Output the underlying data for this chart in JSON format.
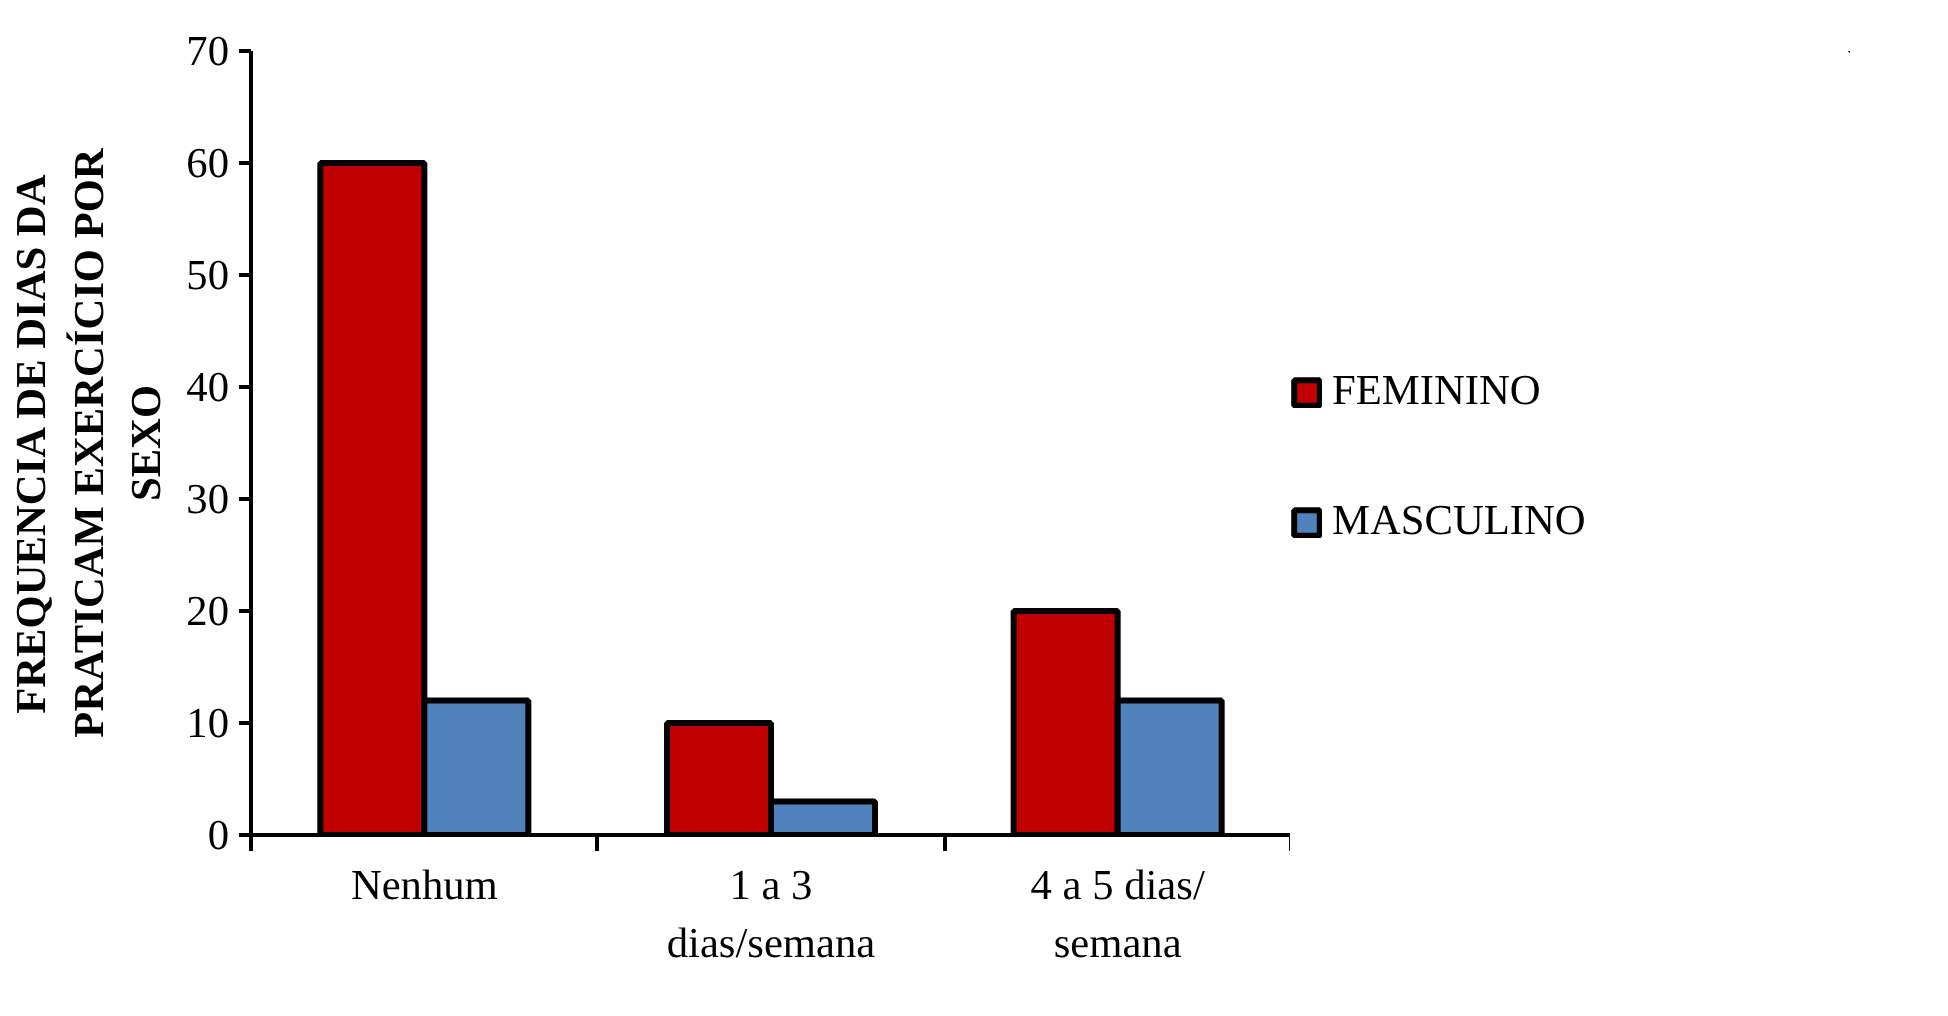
{
  "chart_data": {
    "type": "bar",
    "ylabel": "FREQUENCIA DE DIAS DA PRATICAM EXERCÍCIO POR SEXO",
    "categories": [
      "Nenhum",
      "1 a 3 dias/semana",
      "4 a 5 dias/ semana"
    ],
    "series": [
      {
        "name": "FEMININO",
        "color": "#c00000",
        "values": [
          60,
          10,
          20
        ]
      },
      {
        "name": "MASCULINO",
        "color": "#4f81bd",
        "values": [
          12,
          3,
          12
        ]
      }
    ],
    "ylim": [
      0,
      70
    ],
    "yticks": [
      0,
      10,
      20,
      30,
      40,
      50,
      60,
      70
    ],
    "grid": false,
    "legend": "right"
  }
}
